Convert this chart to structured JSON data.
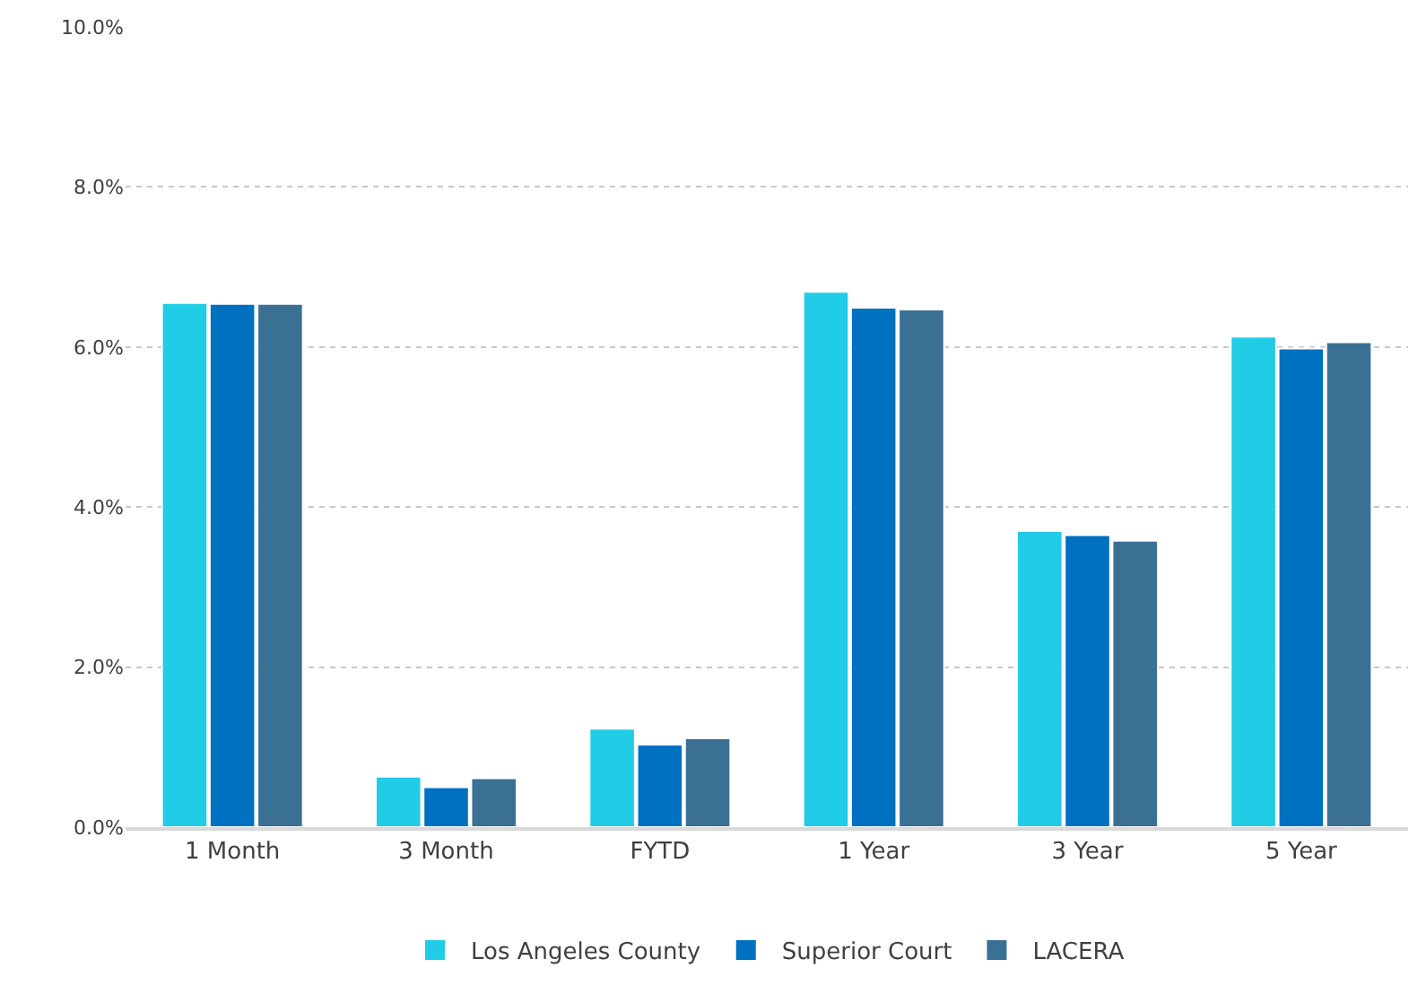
{
  "chart_data": {
    "type": "bar",
    "categories": [
      "1 Month",
      "3 Month",
      "FYTD",
      "1 Year",
      "3 Year",
      "5 Year"
    ],
    "series": [
      {
        "name": "Los Angeles County",
        "color": "#21cce6",
        "values": [
          6.55,
          0.63,
          1.23,
          6.69,
          3.7,
          6.13
        ]
      },
      {
        "name": "Superior Court",
        "color": "#0070c0",
        "values": [
          6.54,
          0.5,
          1.03,
          6.49,
          3.65,
          5.98
        ]
      },
      {
        "name": "LACERA",
        "color": "#3a7094",
        "values": [
          6.54,
          0.61,
          1.11,
          6.47,
          3.58,
          6.06
        ]
      }
    ],
    "ylim": [
      0,
      10
    ],
    "yticks": [
      {
        "value": 0,
        "label": "0.0%"
      },
      {
        "value": 2,
        "label": "2.0%"
      },
      {
        "value": 4,
        "label": "4.0%"
      },
      {
        "value": 6,
        "label": "6.0%"
      },
      {
        "value": 8,
        "label": "8.0%"
      },
      {
        "value": 10,
        "label": "10.0%"
      }
    ],
    "grid": "y",
    "legend": "bottom"
  }
}
